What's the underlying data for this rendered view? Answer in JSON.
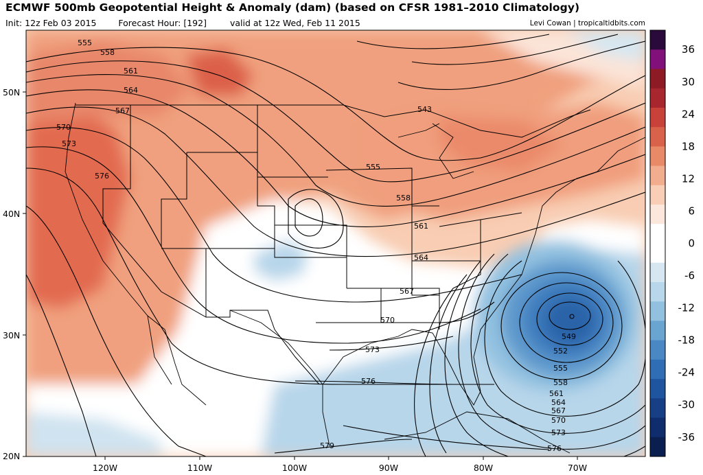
{
  "header": {
    "title": "ECMWF 500mb Geopotential Height & Anomaly (dam) (based on CFSR 1981–2010 Climatology)",
    "init": "Init: 12z Feb 03 2015",
    "forecast_hour": "Forecast Hour: [192]",
    "valid": "valid at 12z Wed, Feb 11 2015",
    "credit": "Levi Cowan | tropicaltidbits.com"
  },
  "axes": {
    "lat_labels": [
      "50N",
      "40N",
      "30N",
      "20N"
    ],
    "lon_labels": [
      "120W",
      "110W",
      "100W",
      "90W",
      "80W",
      "70W"
    ]
  },
  "colorbar": {
    "labels": [
      "36",
      "30",
      "24",
      "18",
      "12",
      "6",
      "0",
      "-6",
      "-12",
      "-18",
      "-24",
      "-30",
      "-36"
    ],
    "colors": [
      "#2a0a3a",
      "#82107a",
      "#8e1a26",
      "#a8262e",
      "#c8423a",
      "#d9634a",
      "#e88a68",
      "#f2ad8e",
      "#f8cfb6",
      "#fbe7dc",
      "#ffffff",
      "#ffffff",
      "#d6e7f1",
      "#b8d7ea",
      "#92c1e0",
      "#6aa5d2",
      "#4a88c4",
      "#2f6db4",
      "#1f559e",
      "#163f86",
      "#0f2d6c",
      "#0a1f50"
    ]
  },
  "contour_labels": [
    "555",
    "558",
    "561",
    "564",
    "567",
    "570",
    "573",
    "576",
    "543",
    "555",
    "558",
    "561",
    "564",
    "567",
    "570",
    "573",
    "576",
    "579",
    "549",
    "552",
    "555",
    "558",
    "561",
    "564",
    "567",
    "570",
    "573",
    "576"
  ],
  "colors": {
    "warm_anomaly": "#f2a27e",
    "strong_warm_anomaly": "#e06a4e",
    "cold_anomaly": "#a9cde6",
    "strong_cold_anomaly": "#2a64a8",
    "contour_line": "#000000"
  }
}
